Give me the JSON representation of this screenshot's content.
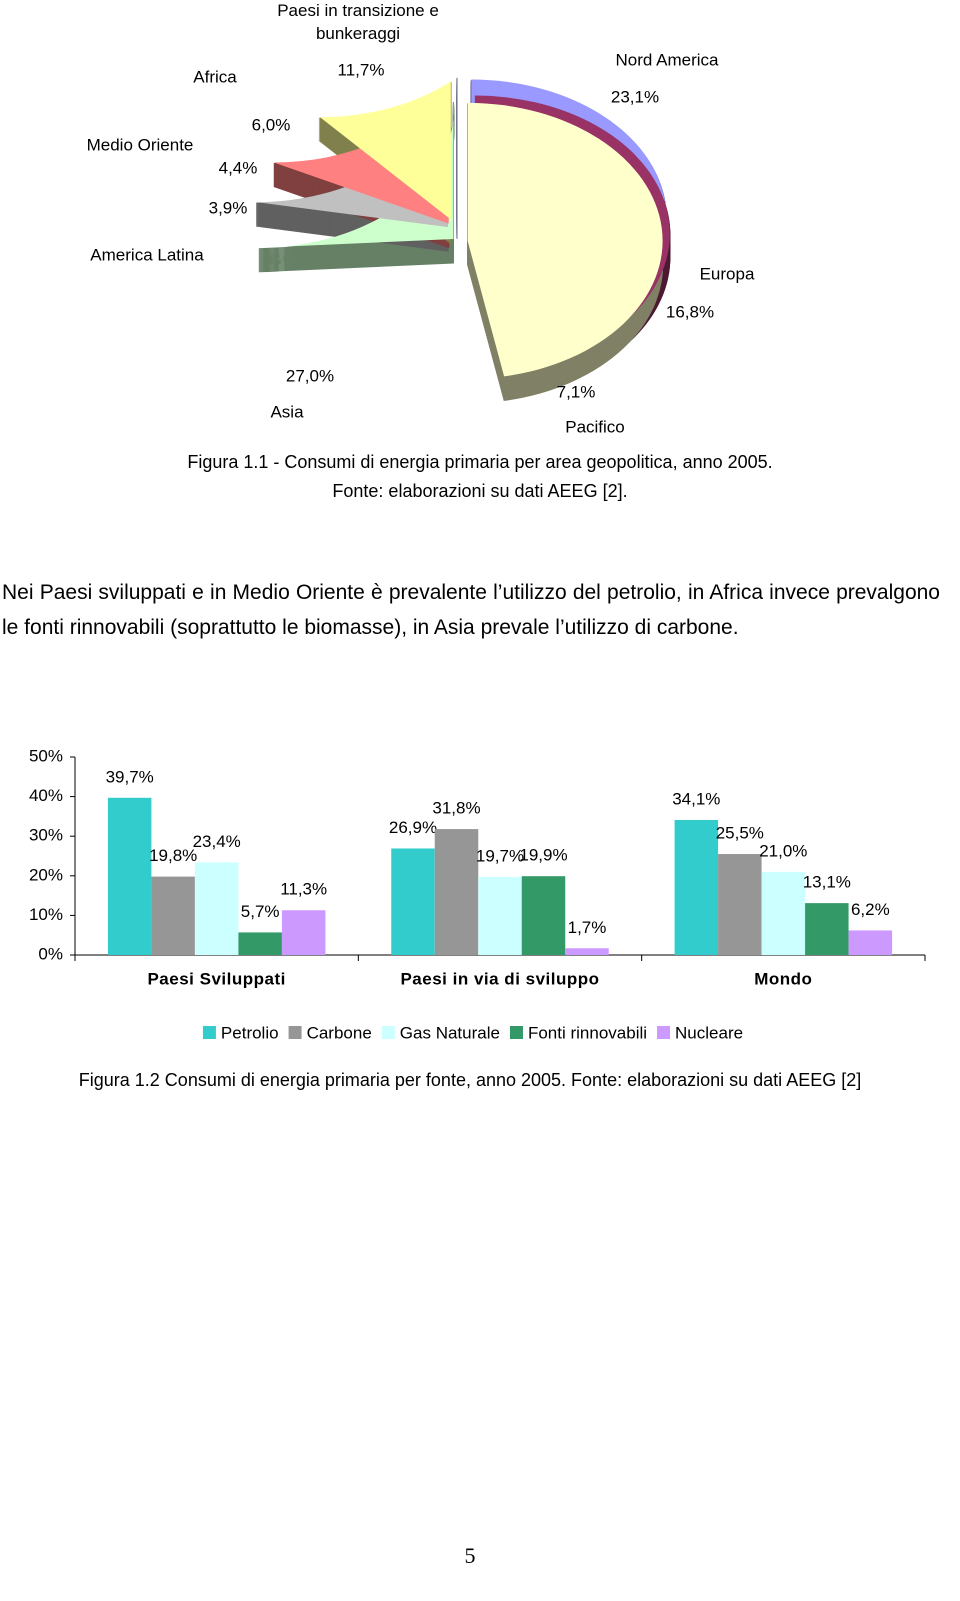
{
  "chart_data": [
    {
      "type": "pie",
      "categories": [
        "Nord America",
        "Europa",
        "Pacifico",
        "Asia",
        "America Latina",
        "Medio Oriente",
        "Africa",
        "Paesi in transizione e bunkeraggi"
      ],
      "values": [
        23.1,
        16.8,
        7.1,
        27.0,
        3.9,
        4.4,
        6.0,
        11.7
      ],
      "value_labels": [
        "23,1%",
        "16,8%",
        "7,1%",
        "27,0%",
        "3,9%",
        "4,4%",
        "6,0%",
        "11,7%"
      ],
      "colors": [
        "#9999ff",
        "#993366",
        "#ffffcc",
        "#ccffcc",
        "#c0c0c0",
        "#ff8080",
        "#ffff99",
        "#ccccff"
      ]
    },
    {
      "type": "bar",
      "categories": [
        "Paesi Sviluppati",
        "Paesi in via di sviluppo",
        "Mondo"
      ],
      "series": [
        {
          "name": "Petrolio",
          "color": "#33cccc",
          "values": [
            39.7,
            26.9,
            34.1
          ],
          "value_labels": [
            "39,7%",
            "26,9%",
            "34,1%"
          ]
        },
        {
          "name": "Carbone",
          "color": "#969696",
          "values": [
            19.8,
            31.8,
            25.5
          ],
          "value_labels": [
            "19,8%",
            "31,8%",
            "25,5%"
          ]
        },
        {
          "name": "Gas Naturale",
          "color": "#ccffff",
          "values": [
            23.4,
            19.7,
            21.0
          ],
          "value_labels": [
            "23,4%",
            "19,7%",
            "21,0%"
          ]
        },
        {
          "name": "Fonti rinnovabili",
          "color": "#339966",
          "values": [
            5.7,
            19.9,
            13.1
          ],
          "value_labels": [
            "5,7%",
            "19,9%",
            "13,1%"
          ]
        },
        {
          "name": "Nucleare",
          "color": "#cc99ff",
          "values": [
            11.3,
            1.7,
            6.2
          ],
          "value_labels": [
            "11,3%",
            "1,7%",
            "6,2%"
          ]
        }
      ],
      "ylim": [
        0,
        50
      ],
      "yticks": [
        {
          "value": 0,
          "label": "0%"
        },
        {
          "value": 10,
          "label": "10%"
        },
        {
          "value": 20,
          "label": "20%"
        },
        {
          "value": 30,
          "label": "30%"
        },
        {
          "value": 40,
          "label": "40%"
        },
        {
          "value": 50,
          "label": "50%"
        }
      ],
      "legend": "bottom"
    }
  ],
  "document": {
    "caption_1": [
      "Figura 1.1 - Consumi di energia primaria per area geopolitica, anno 2005.",
      "Fonte: elaborazioni su dati AEEG [2]."
    ],
    "paragraph": "Nei Paesi sviluppati e in Medio Oriente è prevalente l’utilizzo del petrolio, in Africa invece prevalgono le fonti rinnovabili (soprattutto le biomasse), in Asia prevale l’utilizzo di carbone.",
    "caption_2": "Figura 1.2 Consumi di energia primaria per fonte, anno 2005. Fonte: elaborazioni su dati AEEG [2]",
    "page_number": "5"
  }
}
